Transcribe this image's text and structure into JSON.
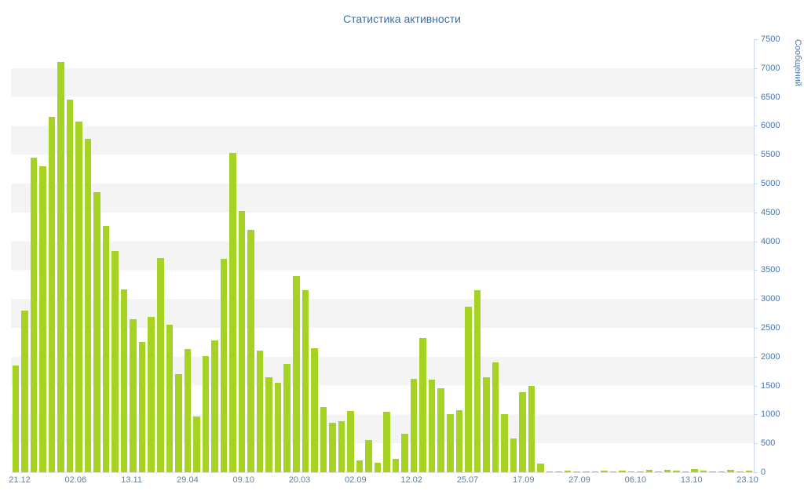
{
  "chart_data": {
    "type": "bar",
    "title": "Статистика активности",
    "xlabel": "",
    "ylabel": "Сообщений",
    "ylim": [
      0,
      7500
    ],
    "y_tick_step": 500,
    "grid": "alternating horizontal bands every 500 units",
    "legend": "none",
    "x_tick_labels": [
      "21.12",
      "02.06",
      "13.11",
      "29.04",
      "09.10",
      "20.03",
      "02.09",
      "12.02",
      "25.07",
      "17.09",
      "27.09",
      "06.10",
      "13.10",
      "23.10"
    ],
    "values": [
      1850,
      2800,
      5450,
      5300,
      6150,
      7100,
      6450,
      6070,
      5780,
      4850,
      4270,
      3830,
      3170,
      2650,
      2250,
      2690,
      3710,
      2550,
      1700,
      2130,
      960,
      2010,
      2280,
      3700,
      5530,
      4530,
      4200,
      2100,
      1650,
      1550,
      1880,
      3400,
      3150,
      2150,
      1130,
      860,
      880,
      1060,
      200,
      560,
      160,
      1050,
      230,
      660,
      1620,
      2330,
      1600,
      1450,
      1000,
      1080,
      2870,
      3150,
      1650,
      1900,
      1000,
      580,
      1380,
      1500,
      150,
      20,
      15,
      30,
      10,
      20,
      15,
      25,
      10,
      30,
      20,
      15,
      35,
      20,
      45,
      25,
      15,
      55,
      30,
      20,
      15,
      35,
      10,
      25
    ],
    "colors": {
      "bar": "#a6d224",
      "band": "#f4f4f4",
      "title": "#3e6e9e",
      "y_tick": "#4a76a8",
      "x_tick": "#667f99",
      "axis_line": "#ccd6eb"
    }
  }
}
